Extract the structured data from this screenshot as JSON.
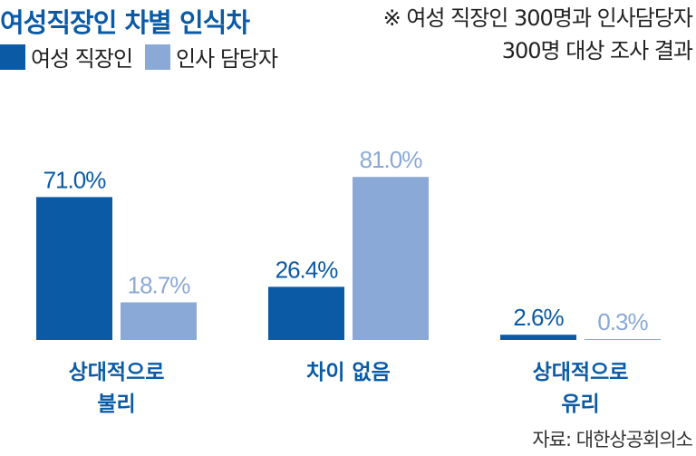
{
  "header": {
    "title": "여성직장인 차별 인식차",
    "note_line1": "※ 여성 직장인 300명과 인사담당자",
    "note_line2": "300명 대상 조사 결과"
  },
  "footer": {
    "source": "자료: 대한상공회의소"
  },
  "colors": {
    "title": "#0a5aa6",
    "series_dark": "#0a5aa6",
    "series_light": "#8aa9d6"
  },
  "chart_data": {
    "type": "bar",
    "categories": [
      [
        "상대적으로",
        "불리"
      ],
      [
        "차이 없음"
      ],
      [
        "상대적으로",
        "유리"
      ]
    ],
    "series": [
      {
        "name": "여성 직장인",
        "values": [
          71.0,
          26.4,
          2.6
        ],
        "labels": [
          "71.0%",
          "26.4%",
          "2.6%"
        ],
        "color": "#0a5aa6"
      },
      {
        "name": "인사 담당자",
        "values": [
          18.7,
          81.0,
          0.3
        ],
        "labels": [
          "18.7%",
          "81.0%",
          "0.3%"
        ],
        "color": "#8aa9d6"
      }
    ],
    "ylim": [
      0,
      100
    ],
    "legend": "top-left",
    "grid": false
  }
}
